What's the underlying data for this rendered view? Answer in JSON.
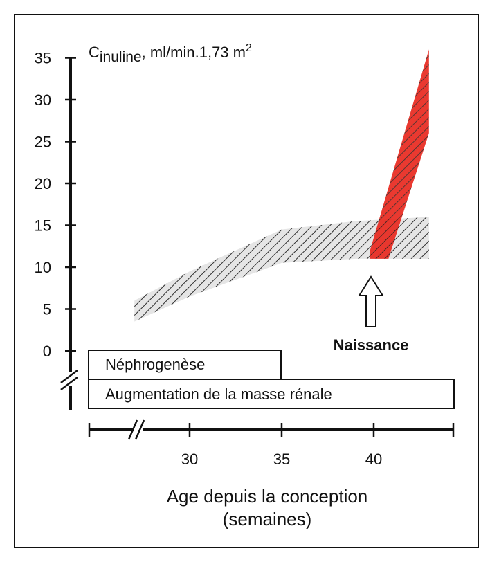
{
  "chart_data": {
    "type": "area",
    "ylabel_prefix": "C",
    "ylabel_sub": "inuline",
    "ylabel_rest": ", ml/min.1,73 m",
    "ylabel_sup": "2",
    "xlabel_line1": "Age depuis la conception",
    "xlabel_line2": "(semaines)",
    "y_ticks": [
      "35",
      "30",
      "25",
      "20",
      "15",
      "10",
      "5",
      "0"
    ],
    "y_tick_values": [
      35,
      30,
      25,
      20,
      15,
      10,
      5,
      0
    ],
    "x_ticks": [
      "30",
      "35",
      "40"
    ],
    "x_tick_values": [
      30,
      35,
      40
    ],
    "ylim": [
      0,
      35
    ],
    "xlim": [
      25,
      44
    ],
    "series": [
      {
        "values_lower": [
          [
            27,
            3.5
          ],
          [
            30,
            6.5
          ],
          [
            35,
            10.5
          ],
          [
            39,
            11
          ],
          [
            43,
            11
          ]
        ],
        "values_upper": [
          [
            27,
            6
          ],
          [
            30,
            9.5
          ],
          [
            35,
            14.5
          ],
          [
            39,
            15.5
          ],
          [
            43,
            16
          ]
        ],
        "color": "#9a9a9a"
      },
      {
        "values_lower": [
          [
            39.8,
            11
          ],
          [
            40.8,
            11
          ],
          [
            43,
            26
          ]
        ],
        "values_upper": [
          [
            39.8,
            12
          ],
          [
            40.2,
            15
          ],
          [
            43,
            36
          ]
        ],
        "color": "#e8281e"
      }
    ],
    "annotations": {
      "birth_label": "Naissance",
      "birth_x": 40
    },
    "bars": [
      {
        "label": "Néphrogenèse",
        "x_end": 35
      },
      {
        "label": "Augmentation de la masse rénale",
        "x_end": 44
      }
    ]
  }
}
